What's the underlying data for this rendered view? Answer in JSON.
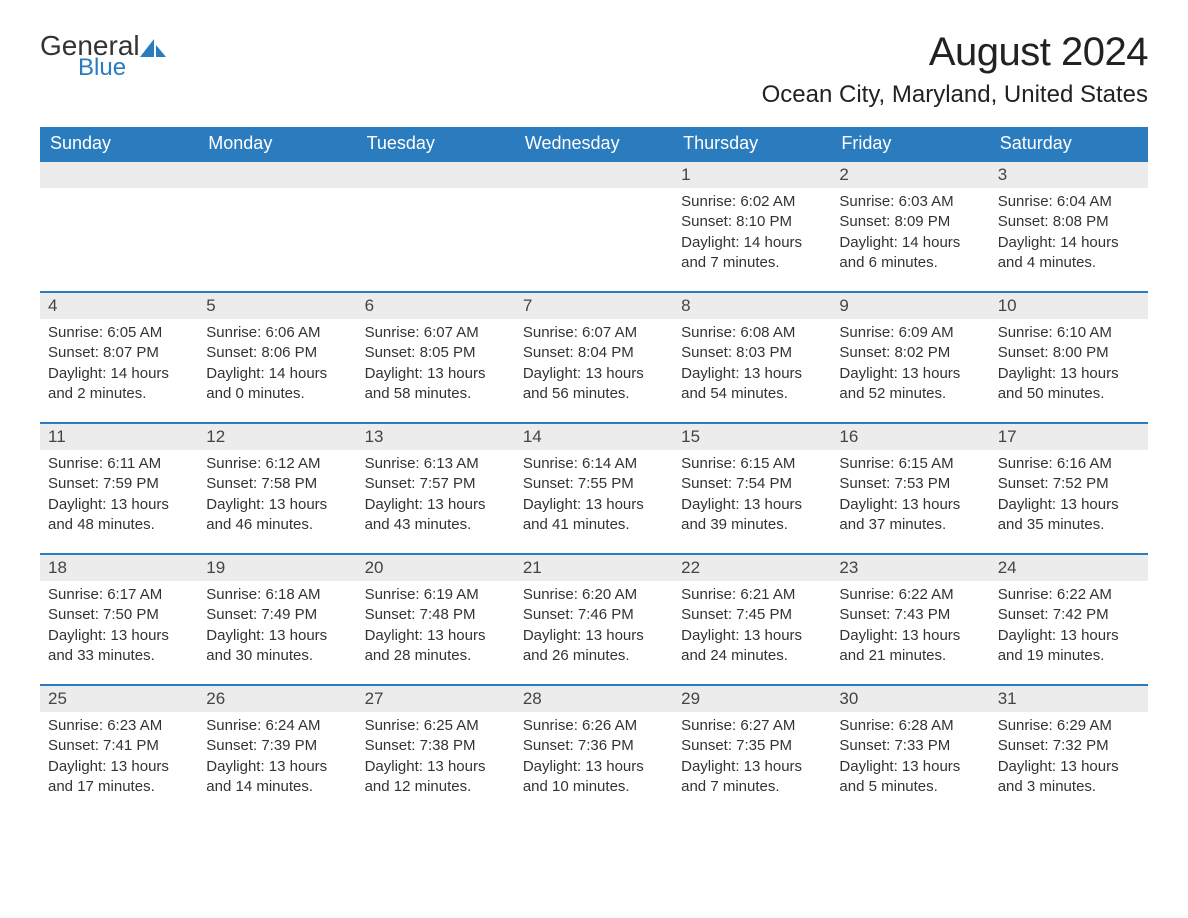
{
  "logo": {
    "text1": "General",
    "text2": "Blue"
  },
  "title": "August 2024",
  "location": "Ocean City, Maryland, United States",
  "colors": {
    "header_bg": "#2b7bbf",
    "header_text": "#ffffff",
    "daynum_bg": "#ececec",
    "border": "#2b7bbf",
    "body_text": "#333333",
    "page_bg": "#ffffff"
  },
  "day_names": [
    "Sunday",
    "Monday",
    "Tuesday",
    "Wednesday",
    "Thursday",
    "Friday",
    "Saturday"
  ],
  "weeks": [
    [
      {
        "num": "",
        "sunrise": "",
        "sunset": "",
        "daylight": ""
      },
      {
        "num": "",
        "sunrise": "",
        "sunset": "",
        "daylight": ""
      },
      {
        "num": "",
        "sunrise": "",
        "sunset": "",
        "daylight": ""
      },
      {
        "num": "",
        "sunrise": "",
        "sunset": "",
        "daylight": ""
      },
      {
        "num": "1",
        "sunrise": "Sunrise: 6:02 AM",
        "sunset": "Sunset: 8:10 PM",
        "daylight": "Daylight: 14 hours and 7 minutes."
      },
      {
        "num": "2",
        "sunrise": "Sunrise: 6:03 AM",
        "sunset": "Sunset: 8:09 PM",
        "daylight": "Daylight: 14 hours and 6 minutes."
      },
      {
        "num": "3",
        "sunrise": "Sunrise: 6:04 AM",
        "sunset": "Sunset: 8:08 PM",
        "daylight": "Daylight: 14 hours and 4 minutes."
      }
    ],
    [
      {
        "num": "4",
        "sunrise": "Sunrise: 6:05 AM",
        "sunset": "Sunset: 8:07 PM",
        "daylight": "Daylight: 14 hours and 2 minutes."
      },
      {
        "num": "5",
        "sunrise": "Sunrise: 6:06 AM",
        "sunset": "Sunset: 8:06 PM",
        "daylight": "Daylight: 14 hours and 0 minutes."
      },
      {
        "num": "6",
        "sunrise": "Sunrise: 6:07 AM",
        "sunset": "Sunset: 8:05 PM",
        "daylight": "Daylight: 13 hours and 58 minutes."
      },
      {
        "num": "7",
        "sunrise": "Sunrise: 6:07 AM",
        "sunset": "Sunset: 8:04 PM",
        "daylight": "Daylight: 13 hours and 56 minutes."
      },
      {
        "num": "8",
        "sunrise": "Sunrise: 6:08 AM",
        "sunset": "Sunset: 8:03 PM",
        "daylight": "Daylight: 13 hours and 54 minutes."
      },
      {
        "num": "9",
        "sunrise": "Sunrise: 6:09 AM",
        "sunset": "Sunset: 8:02 PM",
        "daylight": "Daylight: 13 hours and 52 minutes."
      },
      {
        "num": "10",
        "sunrise": "Sunrise: 6:10 AM",
        "sunset": "Sunset: 8:00 PM",
        "daylight": "Daylight: 13 hours and 50 minutes."
      }
    ],
    [
      {
        "num": "11",
        "sunrise": "Sunrise: 6:11 AM",
        "sunset": "Sunset: 7:59 PM",
        "daylight": "Daylight: 13 hours and 48 minutes."
      },
      {
        "num": "12",
        "sunrise": "Sunrise: 6:12 AM",
        "sunset": "Sunset: 7:58 PM",
        "daylight": "Daylight: 13 hours and 46 minutes."
      },
      {
        "num": "13",
        "sunrise": "Sunrise: 6:13 AM",
        "sunset": "Sunset: 7:57 PM",
        "daylight": "Daylight: 13 hours and 43 minutes."
      },
      {
        "num": "14",
        "sunrise": "Sunrise: 6:14 AM",
        "sunset": "Sunset: 7:55 PM",
        "daylight": "Daylight: 13 hours and 41 minutes."
      },
      {
        "num": "15",
        "sunrise": "Sunrise: 6:15 AM",
        "sunset": "Sunset: 7:54 PM",
        "daylight": "Daylight: 13 hours and 39 minutes."
      },
      {
        "num": "16",
        "sunrise": "Sunrise: 6:15 AM",
        "sunset": "Sunset: 7:53 PM",
        "daylight": "Daylight: 13 hours and 37 minutes."
      },
      {
        "num": "17",
        "sunrise": "Sunrise: 6:16 AM",
        "sunset": "Sunset: 7:52 PM",
        "daylight": "Daylight: 13 hours and 35 minutes."
      }
    ],
    [
      {
        "num": "18",
        "sunrise": "Sunrise: 6:17 AM",
        "sunset": "Sunset: 7:50 PM",
        "daylight": "Daylight: 13 hours and 33 minutes."
      },
      {
        "num": "19",
        "sunrise": "Sunrise: 6:18 AM",
        "sunset": "Sunset: 7:49 PM",
        "daylight": "Daylight: 13 hours and 30 minutes."
      },
      {
        "num": "20",
        "sunrise": "Sunrise: 6:19 AM",
        "sunset": "Sunset: 7:48 PM",
        "daylight": "Daylight: 13 hours and 28 minutes."
      },
      {
        "num": "21",
        "sunrise": "Sunrise: 6:20 AM",
        "sunset": "Sunset: 7:46 PM",
        "daylight": "Daylight: 13 hours and 26 minutes."
      },
      {
        "num": "22",
        "sunrise": "Sunrise: 6:21 AM",
        "sunset": "Sunset: 7:45 PM",
        "daylight": "Daylight: 13 hours and 24 minutes."
      },
      {
        "num": "23",
        "sunrise": "Sunrise: 6:22 AM",
        "sunset": "Sunset: 7:43 PM",
        "daylight": "Daylight: 13 hours and 21 minutes."
      },
      {
        "num": "24",
        "sunrise": "Sunrise: 6:22 AM",
        "sunset": "Sunset: 7:42 PM",
        "daylight": "Daylight: 13 hours and 19 minutes."
      }
    ],
    [
      {
        "num": "25",
        "sunrise": "Sunrise: 6:23 AM",
        "sunset": "Sunset: 7:41 PM",
        "daylight": "Daylight: 13 hours and 17 minutes."
      },
      {
        "num": "26",
        "sunrise": "Sunrise: 6:24 AM",
        "sunset": "Sunset: 7:39 PM",
        "daylight": "Daylight: 13 hours and 14 minutes."
      },
      {
        "num": "27",
        "sunrise": "Sunrise: 6:25 AM",
        "sunset": "Sunset: 7:38 PM",
        "daylight": "Daylight: 13 hours and 12 minutes."
      },
      {
        "num": "28",
        "sunrise": "Sunrise: 6:26 AM",
        "sunset": "Sunset: 7:36 PM",
        "daylight": "Daylight: 13 hours and 10 minutes."
      },
      {
        "num": "29",
        "sunrise": "Sunrise: 6:27 AM",
        "sunset": "Sunset: 7:35 PM",
        "daylight": "Daylight: 13 hours and 7 minutes."
      },
      {
        "num": "30",
        "sunrise": "Sunrise: 6:28 AM",
        "sunset": "Sunset: 7:33 PM",
        "daylight": "Daylight: 13 hours and 5 minutes."
      },
      {
        "num": "31",
        "sunrise": "Sunrise: 6:29 AM",
        "sunset": "Sunset: 7:32 PM",
        "daylight": "Daylight: 13 hours and 3 minutes."
      }
    ]
  ]
}
